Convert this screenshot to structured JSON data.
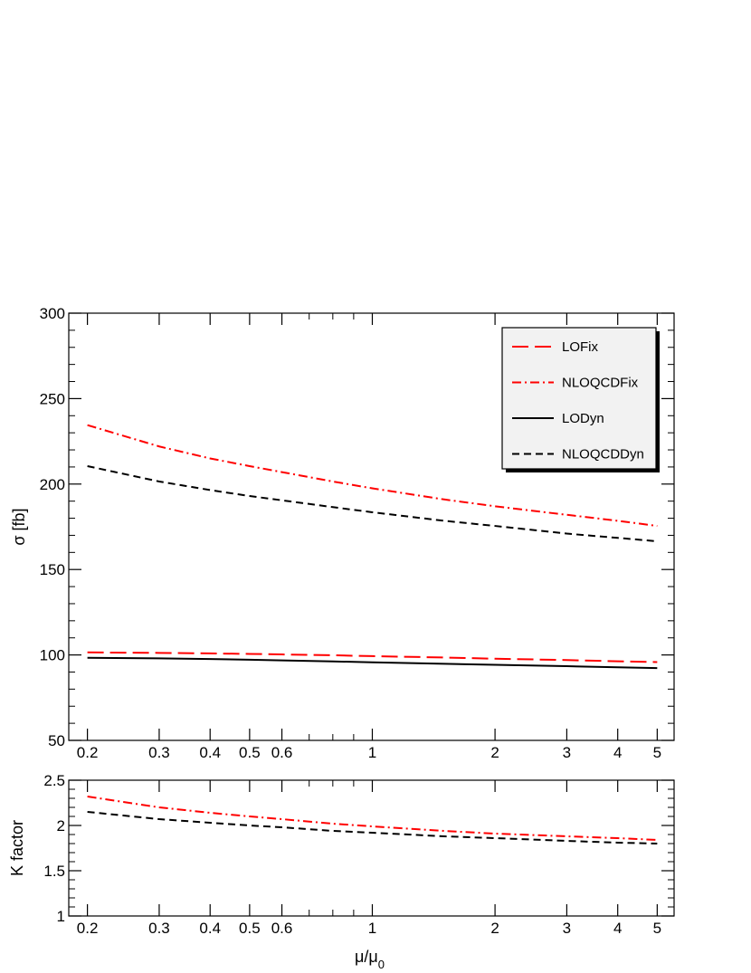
{
  "chart_data": [
    {
      "type": "line",
      "xscale": "log",
      "xlim": [
        0.18,
        5.5
      ],
      "ylim": [
        50,
        300
      ],
      "xticks": [
        0.2,
        0.3,
        0.4,
        0.5,
        0.6,
        1,
        2,
        3,
        4,
        5
      ],
      "xtick_labels": [
        "0.2",
        "0.3",
        "0.4",
        "0.5",
        "0.6",
        "1",
        "2",
        "3",
        "4",
        "5"
      ],
      "yticks": [
        50,
        100,
        150,
        200,
        250,
        300
      ],
      "ytick_labels": [
        "50",
        "100",
        "150",
        "200",
        "250",
        "300"
      ],
      "ylabel": "σ [fb]",
      "xlabel": "",
      "legend_position": "top-right",
      "x": [
        0.2,
        0.3,
        0.4,
        0.5,
        0.6,
        0.8,
        1,
        1.5,
        2,
        3,
        4,
        5
      ],
      "series": [
        {
          "name": "LOFix",
          "color": "#ff0000",
          "dash": "long-dash",
          "values": [
            101.5,
            101.2,
            100.9,
            100.6,
            100.3,
            99.8,
            99.3,
            98.5,
            97.8,
            97.0,
            96.3,
            95.8
          ]
        },
        {
          "name": "NLOQCDFix",
          "color": "#ff0000",
          "dash": "dash-dot",
          "values": [
            234.5,
            222.0,
            215.0,
            210.5,
            207.0,
            201.5,
            197.5,
            191.0,
            187.0,
            182.0,
            178.5,
            175.5
          ]
        },
        {
          "name": "LODyn",
          "color": "#000000",
          "dash": "solid",
          "values": [
            98.3,
            98.0,
            97.6,
            97.2,
            96.8,
            96.2,
            95.7,
            94.8,
            94.2,
            93.4,
            92.8,
            92.3
          ]
        },
        {
          "name": "NLOQCDDyn",
          "color": "#000000",
          "dash": "short-dash",
          "values": [
            210.5,
            201.5,
            196.5,
            193.0,
            190.5,
            186.5,
            183.5,
            178.5,
            175.5,
            171.0,
            168.5,
            166.5
          ]
        }
      ]
    },
    {
      "type": "line",
      "xscale": "log",
      "xlim": [
        0.18,
        5.5
      ],
      "ylim": [
        1,
        2.5
      ],
      "xticks": [
        0.2,
        0.3,
        0.4,
        0.5,
        0.6,
        1,
        2,
        3,
        4,
        5
      ],
      "xtick_labels": [
        "0.2",
        "0.3",
        "0.4",
        "0.5",
        "0.6",
        "1",
        "2",
        "3",
        "4",
        "5"
      ],
      "yticks": [
        1,
        1.5,
        2,
        2.5
      ],
      "ytick_labels": [
        "1",
        "1.5",
        "2",
        "2.5"
      ],
      "ylabel": "K factor",
      "xlabel": "μ/μ",
      "xlabel_sub": "0",
      "x": [
        0.2,
        0.3,
        0.4,
        0.5,
        0.6,
        0.8,
        1,
        1.5,
        2,
        3,
        4,
        5
      ],
      "series": [
        {
          "color": "#ff0000",
          "dash": "dash-dot",
          "values": [
            2.32,
            2.2,
            2.14,
            2.1,
            2.07,
            2.02,
            1.99,
            1.94,
            1.91,
            1.88,
            1.86,
            1.84
          ]
        },
        {
          "color": "#000000",
          "dash": "short-dash",
          "values": [
            2.15,
            2.07,
            2.03,
            2.0,
            1.98,
            1.94,
            1.92,
            1.88,
            1.86,
            1.83,
            1.81,
            1.8
          ]
        }
      ]
    }
  ]
}
